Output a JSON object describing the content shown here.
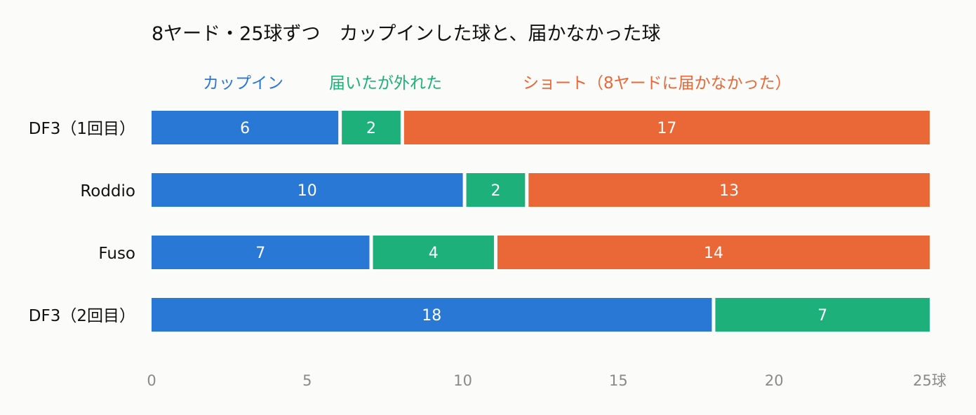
{
  "chart_data": {
    "type": "bar",
    "orientation": "horizontal",
    "stacked": true,
    "title": "8ヤード・25球ずつ　カップインした球と、届かなかった球",
    "categories": [
      "DF3（1回目）",
      "Roddio",
      "Fuso",
      "DF3（2回目）"
    ],
    "series": [
      {
        "name": "カップイン",
        "color": "#2a78d6",
        "values": [
          6,
          10,
          7,
          18
        ]
      },
      {
        "name": "届いたが外れた",
        "color": "#1eb07a",
        "values": [
          2,
          2,
          4,
          7
        ]
      },
      {
        "name": "ショート（8ヤードに届かなかった）",
        "color": "#ea6737",
        "values": [
          17,
          13,
          14,
          0
        ]
      }
    ],
    "xlim": [
      0,
      25
    ],
    "xticks": [
      "0",
      "5",
      "10",
      "15",
      "20",
      "25球"
    ],
    "legend_position": "top",
    "grid": false
  }
}
